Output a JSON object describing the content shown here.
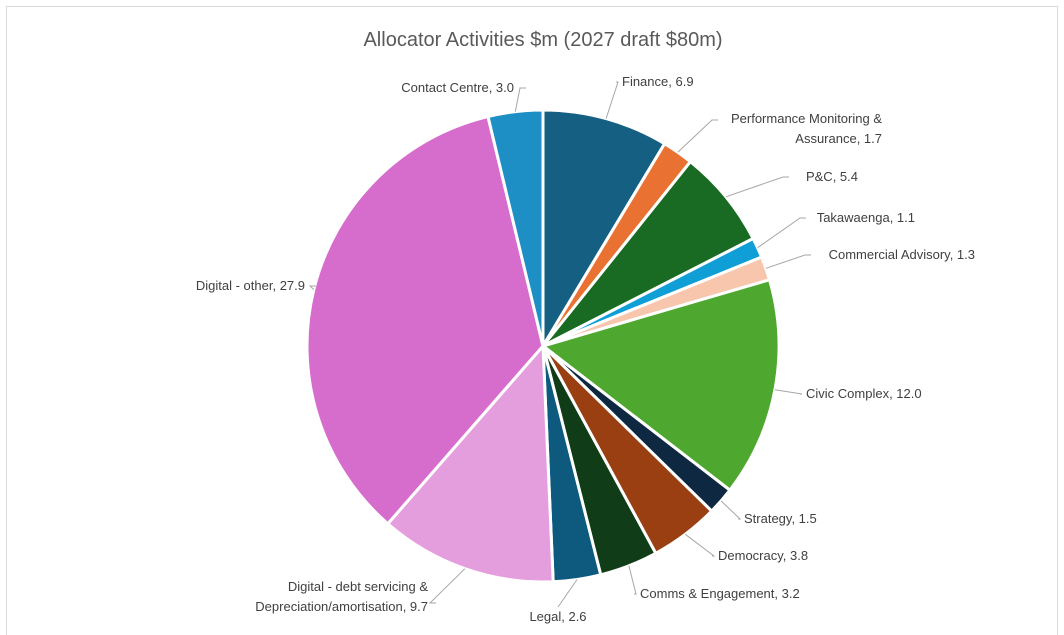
{
  "chart_data": {
    "type": "pie",
    "title": "Allocator Activities $m (2027 draft $80m)",
    "slices": [
      {
        "label": "Finance",
        "value": 6.9,
        "value_text": "6.9",
        "color": "#155F82",
        "display_lines": [
          "Finance, 6.9"
        ]
      },
      {
        "label": "Performance Monitoring & Assurance",
        "value": 1.7,
        "value_text": "1.7",
        "color": "#E97132",
        "display_lines": [
          "Performance Monitoring &",
          "Assurance, 1.7"
        ]
      },
      {
        "label": "P&C",
        "value": 5.4,
        "value_text": "5.4",
        "color": "#196B24",
        "display_lines": [
          "P&C, 5.4"
        ]
      },
      {
        "label": "Takawaenga",
        "value": 1.1,
        "value_text": "1.1",
        "color": "#0F9ED5",
        "display_lines": [
          "Takawaenga, 1.1"
        ]
      },
      {
        "label": "Commercial Advisory",
        "value": 1.3,
        "value_text": "1.3",
        "color": "#F7C6AC",
        "display_lines": [
          "Commercial Advisory, 1.3"
        ]
      },
      {
        "label": "Civic Complex",
        "value": 12.0,
        "value_text": "12.0",
        "color": "#4EA72E",
        "display_lines": [
          "Civic Complex, 12.0"
        ]
      },
      {
        "label": "Strategy",
        "value": 1.5,
        "value_text": "1.5",
        "color": "#0E2841",
        "display_lines": [
          "Strategy, 1.5"
        ]
      },
      {
        "label": "Democracy",
        "value": 3.8,
        "value_text": "3.8",
        "color": "#9A3F12",
        "display_lines": [
          "Democracy, 3.8"
        ]
      },
      {
        "label": "Comms & Engagement",
        "value": 3.2,
        "value_text": "3.2",
        "color": "#103D17",
        "display_lines": [
          "Comms & Engagement, 3.2"
        ]
      },
      {
        "label": "Legal",
        "value": 2.6,
        "value_text": "2.6",
        "color": "#0E5A7E",
        "display_lines": [
          "Legal, 2.6"
        ]
      },
      {
        "label": "Digital - debt servicing & Depreciation/amortisation",
        "value": 9.7,
        "value_text": "9.7",
        "color": "#E59EDD",
        "display_lines": [
          "Digital - debt servicing &",
          "Depreciation/amortisation, 9.7"
        ]
      },
      {
        "label": "Digital - other",
        "value": 27.9,
        "value_text": "27.9",
        "color": "#D66CCB",
        "display_lines": [
          "Digital - other, 27.9"
        ]
      },
      {
        "label": "Contact Centre",
        "value": 3.0,
        "value_text": "3.0",
        "color": "#1E8FC4",
        "display_lines": [
          "Contact Centre, 3.0"
        ]
      }
    ],
    "legend": "none",
    "data_labels": "outside with leader lines"
  }
}
